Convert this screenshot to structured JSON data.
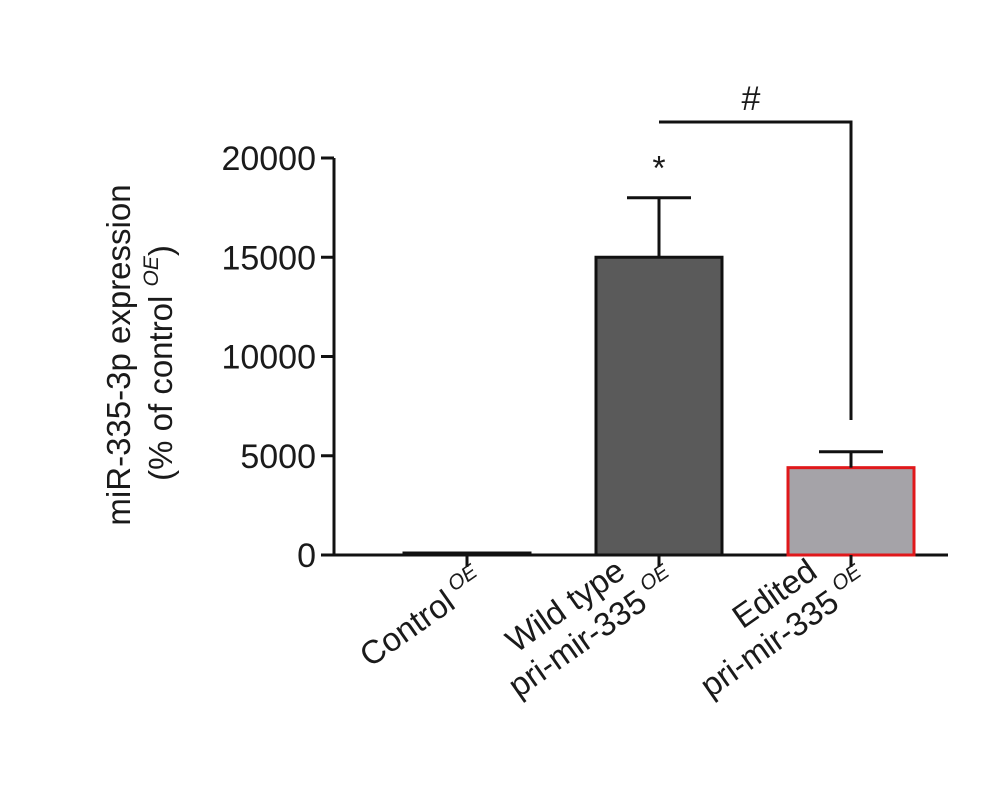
{
  "chart_data": {
    "type": "bar",
    "title": "",
    "categories": [
      {
        "lines": [
          "Control"
        ],
        "superscript": "OE"
      },
      {
        "lines": [
          "Wild type",
          "pri-mir-335"
        ],
        "superscript": "OE"
      },
      {
        "lines": [
          "Edited",
          "pri-mir-335"
        ],
        "superscript": "OE"
      }
    ],
    "values": [
      100,
      15000,
      4400
    ],
    "errors": [
      0,
      3000,
      800
    ],
    "bar_fills": [
      "#5a5a5a",
      "#5a5a5a",
      "#a5a3a8"
    ],
    "bar_strokes": [
      "#111111",
      "#111111",
      "#e0181b"
    ],
    "ylabel_line1": "miR-335-3p expression",
    "ylabel_line2_prefix": "(% of control ",
    "ylabel_line2_sup": "OE",
    "ylabel_line2_suffix": ")",
    "xlabel": "",
    "ylim": [
      0,
      20000
    ],
    "yticks": [
      0,
      5000,
      10000,
      15000,
      20000
    ],
    "yticklabels": [
      "0",
      "5000",
      "10000",
      "15000",
      "20000"
    ],
    "significance": [
      {
        "symbol": "*",
        "category": 1
      },
      {
        "symbol": "#",
        "from_category": 1,
        "to_category": 2
      }
    ]
  }
}
